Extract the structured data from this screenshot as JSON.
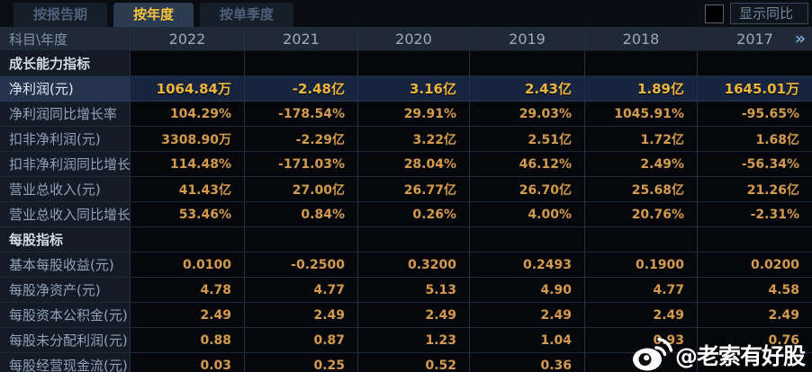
{
  "tabs": {
    "report": {
      "label": "按报告期"
    },
    "year": {
      "label": "按年度"
    },
    "quarter": {
      "label": "按单季度"
    },
    "active_tab": "按年度"
  },
  "controls": {
    "show_yoy_label": "显示同比",
    "checkbox_checked": false,
    "more_years_icon": "»"
  },
  "table": {
    "corner_header": "科目\\年度",
    "years": [
      "2022",
      "2021",
      "2020",
      "2019",
      "2018",
      "2017"
    ],
    "rows": [
      {
        "label": "成长能力指标",
        "type": "section",
        "values": [
          "",
          "",
          "",
          "",
          "",
          ""
        ]
      },
      {
        "label": "净利润(元)",
        "type": "highlight",
        "values": [
          "1064.84万",
          "-2.48亿",
          "3.16亿",
          "2.43亿",
          "1.89亿",
          "1645.01万"
        ]
      },
      {
        "label": "净利润同比增长率",
        "type": "data",
        "values": [
          "104.29%",
          "-178.54%",
          "29.91%",
          "29.03%",
          "1045.91%",
          "-95.65%"
        ]
      },
      {
        "label": "扣非净利润(元)",
        "type": "data",
        "values": [
          "3308.90万",
          "-2.29亿",
          "3.22亿",
          "2.51亿",
          "1.72亿",
          "1.68亿"
        ]
      },
      {
        "label": "扣非净利润同比增长率",
        "type": "data",
        "values": [
          "114.48%",
          "-171.03%",
          "28.04%",
          "46.12%",
          "2.49%",
          "-56.34%"
        ]
      },
      {
        "label": "营业总收入(元)",
        "type": "data",
        "values": [
          "41.43亿",
          "27.00亿",
          "26.77亿",
          "26.70亿",
          "25.68亿",
          "21.26亿"
        ]
      },
      {
        "label": "营业总收入同比增长率",
        "type": "data",
        "values": [
          "53.46%",
          "0.84%",
          "0.26%",
          "4.00%",
          "20.76%",
          "-2.31%"
        ]
      },
      {
        "label": "每股指标",
        "type": "section",
        "values": [
          "",
          "",
          "",
          "",
          "",
          ""
        ]
      },
      {
        "label": "基本每股收益(元)",
        "type": "data",
        "values": [
          "0.0100",
          "-0.2500",
          "0.3200",
          "0.2493",
          "0.1900",
          "0.0200"
        ]
      },
      {
        "label": "每股净资产(元)",
        "type": "data",
        "values": [
          "4.78",
          "4.77",
          "5.13",
          "4.90",
          "4.77",
          "4.58"
        ]
      },
      {
        "label": "每股资本公积金(元)",
        "type": "data",
        "values": [
          "2.49",
          "2.49",
          "2.49",
          "2.49",
          "2.49",
          "2.49"
        ]
      },
      {
        "label": "每股未分配利润(元)",
        "type": "data",
        "values": [
          "0.88",
          "0.87",
          "1.23",
          "1.04",
          "0.93",
          "0.76"
        ]
      },
      {
        "label": "每股经营现金流(元)",
        "type": "data",
        "values": [
          "0.03",
          "0.25",
          "0.52",
          "0.36",
          "",
          ""
        ]
      }
    ]
  },
  "watermark": {
    "logo": "weibo-icon",
    "handle": "@老索有好股"
  },
  "colors": {
    "accent_gold": "#f5c33e",
    "value_orange": "#d49a4e",
    "highlight_row_bg": "#182541",
    "label_col_bg": "#141b26",
    "header_bg": "#202a37",
    "grid_line": "#223140"
  }
}
